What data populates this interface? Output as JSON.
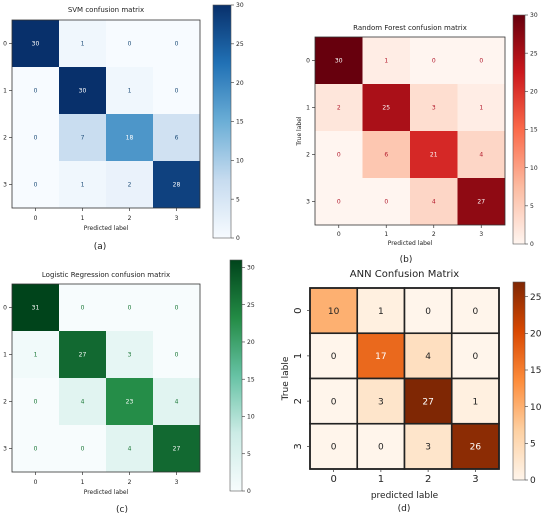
{
  "chart_data": [
    {
      "type": "heatmap",
      "title": "SVM confusion matrix",
      "xlabel": "Predicted label",
      "ylabel": "True label",
      "caption": "(a)",
      "x_categories": [
        "0",
        "1",
        "2",
        "3"
      ],
      "y_categories": [
        "0",
        "1",
        "2",
        "3"
      ],
      "values": [
        [
          30,
          1,
          0,
          0
        ],
        [
          0,
          30,
          1,
          0
        ],
        [
          0,
          7,
          18,
          6
        ],
        [
          0,
          1,
          2,
          28
        ]
      ],
      "zlim": [
        0,
        30
      ],
      "colorbar_ticks": [
        0,
        5,
        10,
        15,
        20,
        25,
        30
      ],
      "colormap": [
        "#f7fbff",
        "#c6dbef",
        "#6baed6",
        "#2171b5",
        "#08306b"
      ],
      "text_colors": {
        "light": "#ffffff",
        "dark": "#1f4e79"
      },
      "grid": false
    },
    {
      "type": "heatmap",
      "title": "Random Forest confusion matrix",
      "xlabel": "Predicted label",
      "ylabel": "True label",
      "caption": "(b)",
      "x_categories": [
        "0",
        "1",
        "2",
        "3"
      ],
      "y_categories": [
        "0",
        "1",
        "2",
        "3"
      ],
      "values": [
        [
          30,
          1,
          0,
          0
        ],
        [
          2,
          25,
          3,
          1
        ],
        [
          0,
          6,
          21,
          4
        ],
        [
          0,
          0,
          4,
          27
        ]
      ],
      "zlim": [
        0,
        30
      ],
      "colorbar_ticks": [
        0,
        5,
        10,
        15,
        20,
        25,
        30
      ],
      "colormap": [
        "#fff5f0",
        "#fcbba1",
        "#fb6a4a",
        "#cb181d",
        "#67000d"
      ],
      "text_colors": {
        "light": "#ffffff",
        "dark": "#b2182b"
      },
      "grid": false
    },
    {
      "type": "heatmap",
      "title": "Logistic Regression confusion matrix",
      "xlabel": "Predicted label",
      "ylabel": "True label",
      "caption": "(c)",
      "x_categories": [
        "0",
        "1",
        "2",
        "3"
      ],
      "y_categories": [
        "0",
        "1",
        "2",
        "3"
      ],
      "values": [
        [
          31,
          0,
          0,
          0
        ],
        [
          1,
          27,
          3,
          0
        ],
        [
          0,
          4,
          23,
          4
        ],
        [
          0,
          0,
          4,
          27
        ]
      ],
      "zlim": [
        0,
        31
      ],
      "colorbar_ticks": [
        0,
        5,
        10,
        15,
        20,
        25,
        30
      ],
      "colormap": [
        "#f7fcfd",
        "#ccece6",
        "#66c2a4",
        "#238b45",
        "#00441b"
      ],
      "text_colors": {
        "light": "#ffffff",
        "dark": "#1b7837"
      },
      "grid": false
    },
    {
      "type": "heatmap",
      "title": "ANN Confusion Matrix",
      "xlabel": "predicted lable",
      "ylabel": "True lable",
      "caption": "(d)",
      "x_categories": [
        "0",
        "1",
        "2",
        "3"
      ],
      "y_categories": [
        "0",
        "1",
        "2",
        "3"
      ],
      "values": [
        [
          10,
          1,
          0,
          0
        ],
        [
          0,
          17,
          4,
          0
        ],
        [
          0,
          3,
          27,
          1
        ],
        [
          0,
          0,
          3,
          26
        ]
      ],
      "zlim": [
        0,
        27
      ],
      "colorbar_ticks": [
        0,
        5,
        10,
        15,
        20,
        25
      ],
      "colormap": [
        "#fff5eb",
        "#fdd0a2",
        "#fd8d3c",
        "#d94801",
        "#7f2704"
      ],
      "text_colors": {
        "light": "#ffffff",
        "dark": "#222222"
      },
      "grid": true
    }
  ]
}
